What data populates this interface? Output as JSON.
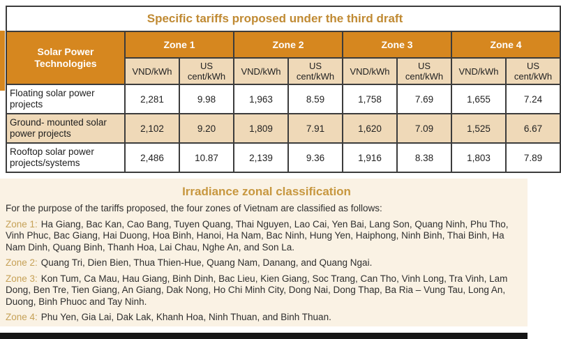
{
  "colors": {
    "header_orange": "#d6871f",
    "tan": "#efd9b8",
    "title_text": "#c08a33",
    "section_bg": "#faf2e4",
    "section_title": "#c7973f",
    "zone_gold": "#c6a157",
    "bar_dark": "#151515"
  },
  "tariff_table": {
    "title": "Specific tariffs proposed under the third draft",
    "row_header": "Solar Power Technologies",
    "zones": [
      "Zone 1",
      "Zone 2",
      "Zone 3",
      "Zone 4"
    ],
    "unit_vnd": "VND/kWh",
    "unit_cent": "US cent/kWh",
    "rows": [
      {
        "label": "Floating solar power projects",
        "values": [
          "2,281",
          "9.98",
          "1,963",
          "8.59",
          "1,758",
          "7.69",
          "1,655",
          "7.24"
        ]
      },
      {
        "label": "Ground- mounted solar power projects",
        "values": [
          "2,102",
          "9.20",
          "1,809",
          "7.91",
          "1,620",
          "7.09",
          "1,525",
          "6.67"
        ]
      },
      {
        "label": "Rooftop solar power projects/systems",
        "values": [
          "2,486",
          "10.87",
          "2,139",
          "9.36",
          "1,916",
          "8.38",
          "1,803",
          "7.89"
        ]
      }
    ]
  },
  "classification": {
    "title": "Irradiance zonal classification",
    "intro": "For the purpose of the tariffs proposed, the four zones of Vietnam are classified as follows:",
    "zones": [
      {
        "label": "Zone 1:",
        "text": "Ha Giang, Bac Kan, Cao Bang, Tuyen Quang, Thai Nguyen, Lao Cai, Yen Bai, Lang Son, Quang Ninh, Phu Tho,\nVinh Phuc, Bac Giang, Hai Duong, Hoa Binh, Hanoi, Ha Nam, Bac Ninh, Hung Yen, Haiphong, Ninh Binh, Thai Binh, Ha\nNam Dinh, Quang Binh, Thanh Hoa, Lai Chau, Nghe An, and Son La."
      },
      {
        "label": "Zone 2:",
        "text": "Quang Tri, Dien Bien, Thua Thien-Hue, Quang Nam, Danang, and Quang Ngai."
      },
      {
        "label": "Zone 3:",
        "text": "Kon Tum, Ca Mau, Hau Giang, Binh Dinh, Bac Lieu, Kien Giang, Soc Trang, Can Tho, Vinh Long, Tra Vinh, Lam\nDong, Ben Tre, Tien Giang, An Giang, Dak Nong, Ho Chi Minh City, Dong Nai, Dong Thap, Ba Ria – Vung Tau, Long An,\nDuong, Binh Phuoc and Tay Ninh."
      },
      {
        "label": "Zone 4:",
        "text": "Phu Yen, Gia Lai, Dak Lak, Khanh Hoa, Ninh Thuan, and Binh Thuan."
      }
    ]
  }
}
